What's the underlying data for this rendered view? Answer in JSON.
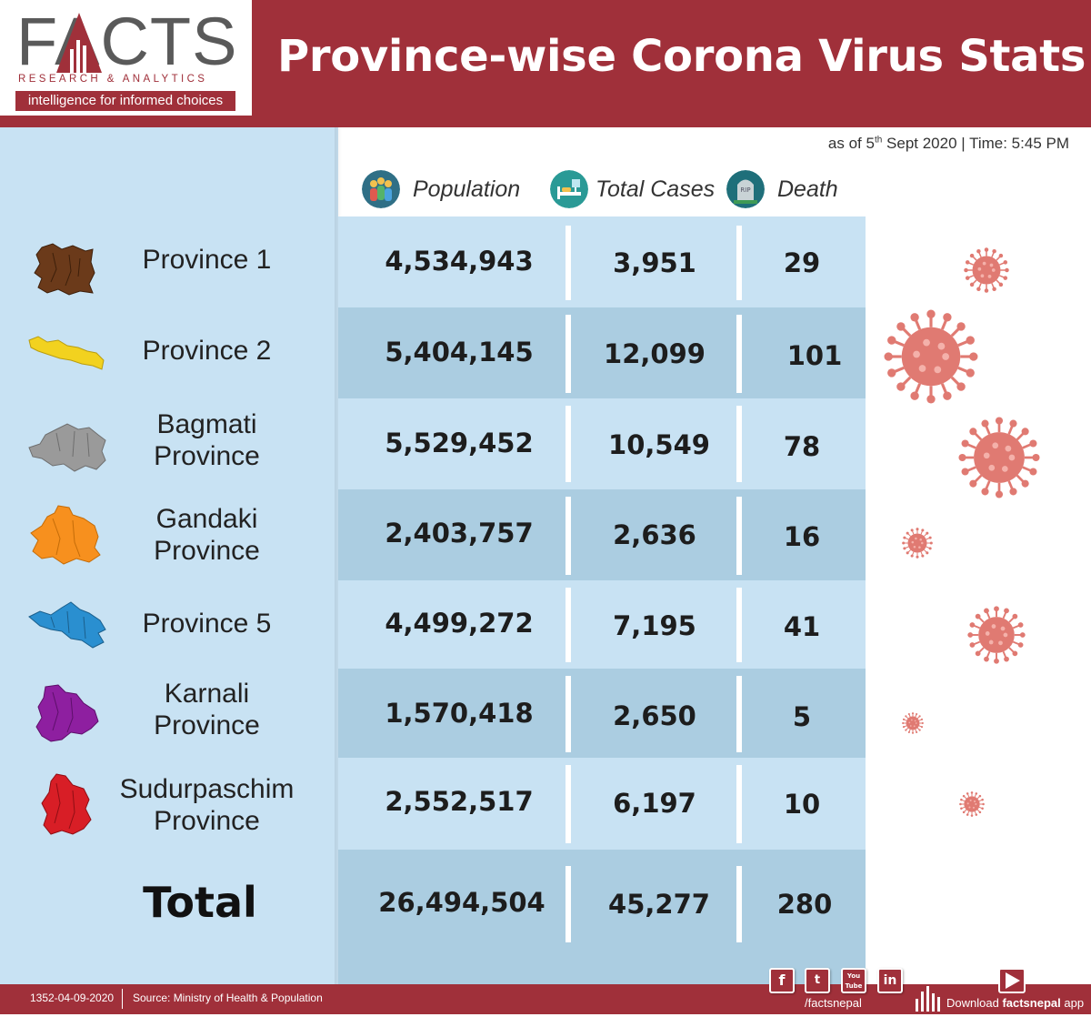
{
  "header": {
    "logo_text": "FACTS",
    "logo_subtitle": "RESEARCH & ANALYTICS",
    "logo_tagline": "intelligence for informed choices",
    "title": "Province-wise Corona Virus Stats"
  },
  "timestamp": {
    "prefix": "as of 5",
    "ordinal": "th",
    "suffix": " Sept 2020 | Time: 5:45 PM"
  },
  "columns": {
    "population": "Population",
    "total_cases": "Total Cases",
    "death": "Death"
  },
  "provinces": [
    {
      "name": "Province 1",
      "population": "4,534,943",
      "cases": "3,951",
      "death": "29",
      "color": "#6b3a1a"
    },
    {
      "name": "Province 2",
      "population": "5,404,145",
      "cases": "12,099",
      "death": "101",
      "color": "#f2d21f"
    },
    {
      "name": "Bagmati Province",
      "population": "5,529,452",
      "cases": "10,549",
      "death": "78",
      "color": "#9a9a9a"
    },
    {
      "name": "Gandaki Province",
      "population": "2,403,757",
      "cases": "2,636",
      "death": "16",
      "color": "#f7901e"
    },
    {
      "name": "Province 5",
      "population": "4,499,272",
      "cases": "7,195",
      "death": "41",
      "color": "#2a8fd0"
    },
    {
      "name": "Karnali Province",
      "population": "1,570,418",
      "cases": "2,650",
      "death": "5",
      "color": "#8e1fa0"
    },
    {
      "name": "Sudurpaschim Province",
      "population": "2,552,517",
      "cases": "6,197",
      "death": "10",
      "color": "#d81e26"
    }
  ],
  "total": {
    "label": "Total",
    "population": "26,494,504",
    "cases": "45,277",
    "death": "280"
  },
  "footer": {
    "code": "1352-04-09-2020",
    "source": "Source: Ministry of Health & Population",
    "social_handle": "/factsnepal",
    "app_prefix": "Download ",
    "app_name": "factsnepal",
    "app_suffix": " app",
    "social_icons": [
      "facebook-icon",
      "twitter-icon",
      "youtube-icon",
      "linkedin-icon"
    ],
    "social_glyphs": [
      "f",
      "t",
      "You Tube",
      "in"
    ]
  },
  "colors": {
    "brand_red": "#a0303a",
    "panel_light": "#c8e2f3",
    "row_dark": "#abcde1",
    "virus": "#e07a72"
  }
}
